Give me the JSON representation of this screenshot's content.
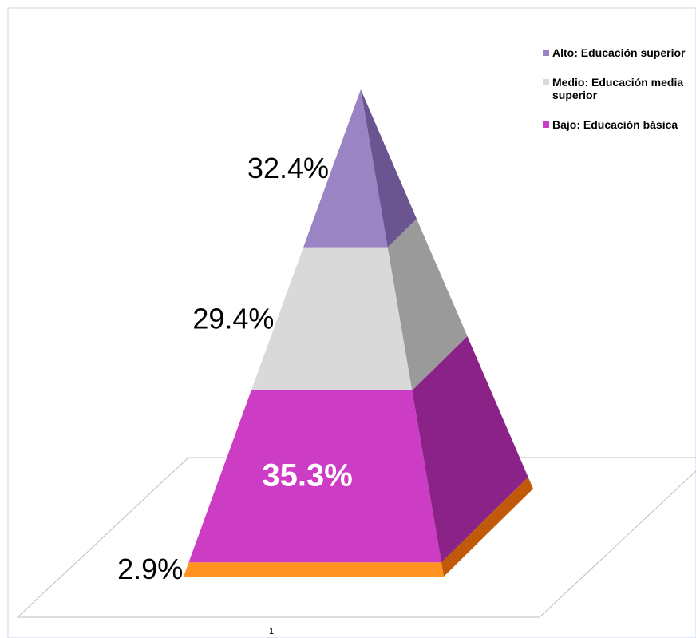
{
  "chart_data": {
    "type": "pyramid",
    "categories": [
      "1"
    ],
    "series": [
      {
        "color": "#ff9420",
        "side_color": "#c05a0a",
        "label_color": "#000000",
        "values": [
          2.9
        ],
        "value_labels": [
          "2.9%"
        ]
      },
      {
        "name": "Bajo: Educación básica",
        "color": "#cc3cc4",
        "side_color": "#8b2288",
        "label_color": "#ffffff",
        "values": [
          35.3
        ],
        "value_labels": [
          "35.3%"
        ]
      },
      {
        "name": "Medio: Educación media superior",
        "color": "#d9d9d9",
        "side_color": "#9a9a9a",
        "label_color": "#000000",
        "values": [
          29.4
        ],
        "value_labels": [
          "29.4%"
        ]
      },
      {
        "name": "Alto: Educación superior",
        "color": "#9b84c4",
        "side_color": "#6b5590",
        "label_color": "#000000",
        "values": [
          32.4
        ],
        "value_labels": [
          "32.4%"
        ]
      }
    ]
  }
}
